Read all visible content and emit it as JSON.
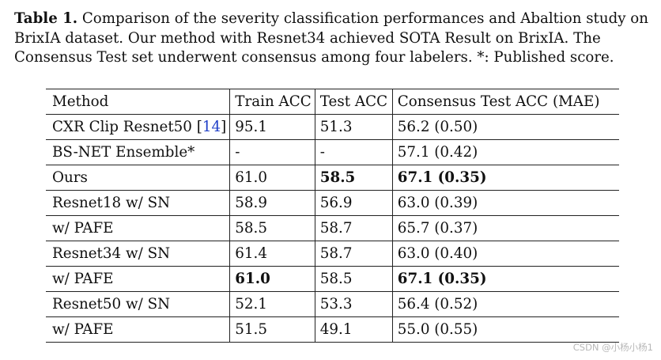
{
  "caption": {
    "label": "Table 1.",
    "text": "Comparison of the severity classification performances and Abaltion study on BrixIA dataset. Our method with Resnet34 achieved SOTA Result on BrixIA. The Consensus Test set underwent consensus among four labelers. *: Published score."
  },
  "table": {
    "headers": [
      "Method",
      "Train ACC",
      "Test ACC",
      "Consensus Test ACC (MAE)"
    ],
    "rows": [
      {
        "method": "CXR Clip Resnet50 [",
        "ref": "14",
        "method_end": "]",
        "train": "95.1",
        "test": "51.3",
        "consensus": "56.2 (0.50)"
      },
      {
        "method": "BS-NET Ensemble*",
        "train": "-",
        "test": "-",
        "consensus": "57.1 (0.42)"
      },
      {
        "method": "Ours",
        "train": "61.0",
        "test": "58.5",
        "consensus": "67.1 (0.35)"
      },
      {
        "method": "Resnet18 w/ SN",
        "train": "58.9",
        "test": "56.9",
        "consensus": "63.0 (0.39)"
      },
      {
        "method": "w/ PAFE",
        "train": "58.5",
        "test": "58.7",
        "consensus": "65.7 (0.37)"
      },
      {
        "method": "Resnet34 w/ SN",
        "train": "61.4",
        "test": "58.7",
        "consensus": "63.0 (0.40)"
      },
      {
        "method": "w/ PAFE",
        "train": "61.0",
        "test": "58.5",
        "consensus": "67.1 (0.35)"
      },
      {
        "method": "Resnet50 w/ SN",
        "train": "52.1",
        "test": "53.3",
        "consensus": "56.4 (0.52)"
      },
      {
        "method": "w/ PAFE",
        "train": "51.5",
        "test": "49.1",
        "consensus": "55.0 (0.55)"
      }
    ]
  },
  "watermark": "CSDN @小杨小杨1",
  "colors": {
    "reference_link": "#1f3fc8",
    "watermark": "#b8b8b8"
  }
}
